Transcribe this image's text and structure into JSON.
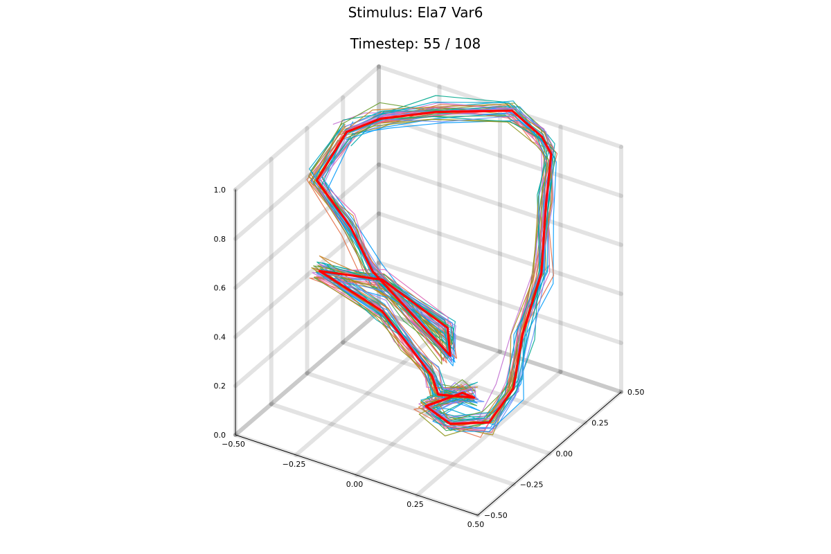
{
  "header": {
    "title": "Stimulus: Ela7 Var6",
    "subtitle": "Timestep: 55 / 108"
  },
  "chart_data": {
    "type": "line",
    "projection": "3d",
    "title": "Stimulus: Ela7 Var6",
    "subtitle": "Timestep: 55 / 108",
    "grid": true,
    "legend": "none",
    "xlim": [
      -0.5,
      0.5
    ],
    "ylim": [
      -0.5,
      0.5
    ],
    "zlim": [
      0.0,
      1.0
    ],
    "x_ticks": [
      "−0.50",
      "−0.25",
      "0.00",
      "0.25",
      "0.50"
    ],
    "y_ticks": [
      "−0.50",
      "−0.25",
      "0.00",
      "0.25",
      "0.50"
    ],
    "z_ticks": [
      "0.0",
      "0.2",
      "0.4",
      "0.6",
      "0.8",
      "1.0"
    ],
    "colors": {
      "highlight": "#ff0000",
      "palette": [
        "#009afa",
        "#e36f47",
        "#3ea44e",
        "#c371d2",
        "#ac8e18",
        "#00aaae",
        "#ed5e93",
        "#c68225",
        "#00a98d",
        "#8e971e",
        "#00a9cd",
        "#9b7fe9",
        "#618df6",
        "#f05f73",
        "#dd65b6",
        "#6c9f33",
        "#009af9"
      ]
    },
    "series": [
      {
        "role": "highlight",
        "points": [
          [
            -0.42,
            0.14,
            0.94
          ],
          [
            -0.34,
            0.24,
            0.97
          ],
          [
            -0.18,
            0.36,
            0.99
          ],
          [
            0.05,
            0.5,
            1.0
          ],
          [
            0.22,
            0.42,
            0.99
          ],
          [
            0.3,
            0.35,
            0.98
          ],
          [
            0.32,
            0.28,
            0.82
          ],
          [
            0.36,
            0.18,
            0.6
          ],
          [
            0.36,
            0.05,
            0.42
          ],
          [
            0.38,
            -0.05,
            0.25
          ],
          [
            0.34,
            -0.15,
            0.15
          ],
          [
            0.22,
            -0.22,
            0.14
          ],
          [
            0.12,
            -0.22,
            0.18
          ],
          [
            0.2,
            -0.1,
            0.2
          ],
          [
            0.2,
            -0.02,
            0.14
          ],
          [
            0.1,
            -0.1,
            0.16
          ],
          [
            0.05,
            -0.06,
            0.2
          ],
          [
            -0.08,
            0.0,
            0.25
          ],
          [
            -0.22,
            0.05,
            0.32
          ],
          [
            -0.46,
            0.02,
            0.42
          ],
          [
            -0.26,
            0.12,
            0.4
          ],
          [
            0.05,
            0.05,
            0.34
          ],
          [
            0.12,
            -0.05,
            0.3
          ],
          [
            -0.1,
            0.05,
            0.35
          ],
          [
            -0.3,
            0.12,
            0.42
          ],
          [
            -0.35,
            0.05,
            0.62
          ],
          [
            -0.46,
            0.0,
            0.8
          ],
          [
            -0.42,
            0.14,
            0.94
          ]
        ]
      }
    ]
  }
}
